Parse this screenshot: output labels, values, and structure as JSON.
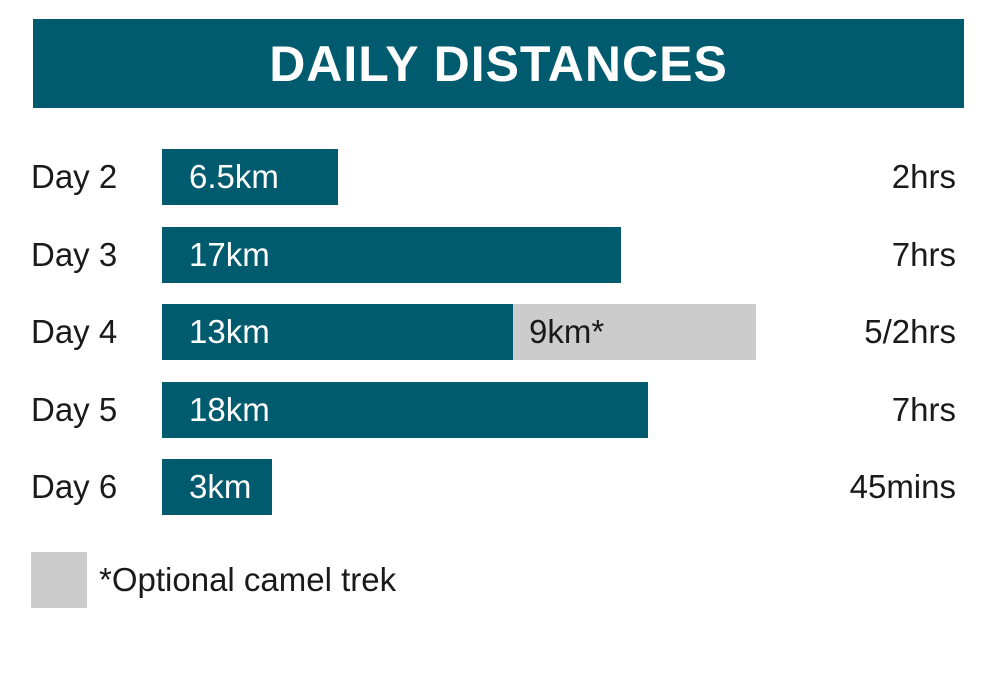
{
  "chart_data": {
    "type": "bar",
    "orientation": "horizontal",
    "stacked": true,
    "title": "DAILY DISTANCES",
    "unit": "km",
    "categories": [
      "Day 2",
      "Day 3",
      "Day 4",
      "Day 5",
      "Day 6"
    ],
    "series": [
      {
        "values": [
          6.5,
          17,
          13,
          18,
          3
        ],
        "labels": [
          "6.5km",
          "17km",
          "13km",
          "18km",
          "3km"
        ],
        "color": "#005b6e"
      },
      {
        "name": "*Optional camel trek",
        "values": [
          0,
          0,
          9,
          0,
          0
        ],
        "labels": [
          "",
          "",
          "9km*",
          "",
          ""
        ],
        "color": "#cccccc"
      }
    ],
    "durations": [
      "2hrs",
      "7hrs",
      "5/2hrs",
      "7hrs",
      "45mins"
    ],
    "legend": {
      "label": "*Optional camel trek",
      "color": "#cccccc",
      "placement": "bottom-left"
    }
  }
}
